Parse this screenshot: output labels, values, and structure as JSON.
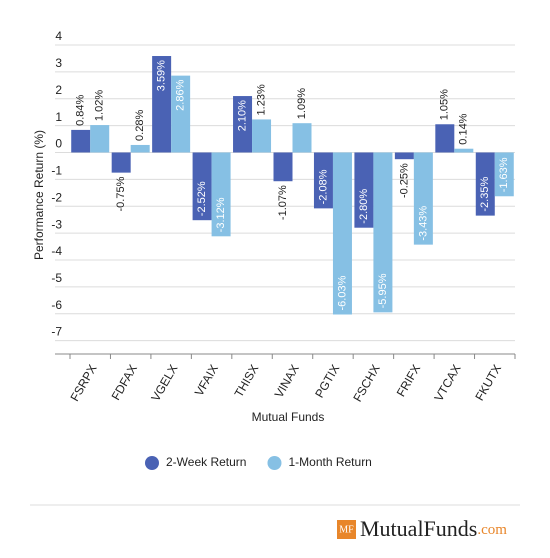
{
  "chart_data": {
    "type": "bar",
    "x_label": "Mutual Funds",
    "y_label": "Performance Return (%)",
    "categories": [
      "FSRPX",
      "FDFAX",
      "VGELX",
      "VFAIX",
      "THISX",
      "VINAX",
      "PGTIX",
      "FSCHX",
      "FRIFX",
      "VTCAX",
      "FKUTX"
    ],
    "series": [
      {
        "name": "2-Week Return",
        "color": "#4a62b4",
        "values": [
          0.84,
          -0.75,
          3.59,
          -2.52,
          2.1,
          -1.07,
          -2.08,
          -2.8,
          -0.25,
          1.05,
          -2.35
        ],
        "value_labels": [
          "0.84%",
          "-0.75%",
          "3.59%",
          "-2.52%",
          "2.10%",
          "-1.07%",
          "-2.08%",
          "-2.80%",
          "-0.25%",
          "1.05%",
          "-2.35%"
        ]
      },
      {
        "name": "1-Month Return",
        "color": "#86c0e4",
        "values": [
          1.02,
          0.28,
          2.86,
          -3.12,
          1.23,
          1.09,
          -6.03,
          -5.95,
          -3.43,
          0.14,
          -1.63
        ],
        "value_labels": [
          "1.02%",
          "0.28%",
          "2.86%",
          "-3.12%",
          "1.23%",
          "1.09%",
          "-6.03%",
          "-5.95%",
          "-3.43%",
          "0.14%",
          "-1.63%"
        ]
      }
    ],
    "ylim": [
      -7.5,
      4
    ],
    "yticks": [
      4,
      3,
      2,
      1,
      0,
      -1,
      -2,
      -3,
      -4,
      -5,
      -6,
      -7
    ],
    "grid": true,
    "legend": "bottom"
  },
  "brand": {
    "badge": "MF",
    "name": "MutualFunds",
    "suffix": ".com"
  }
}
